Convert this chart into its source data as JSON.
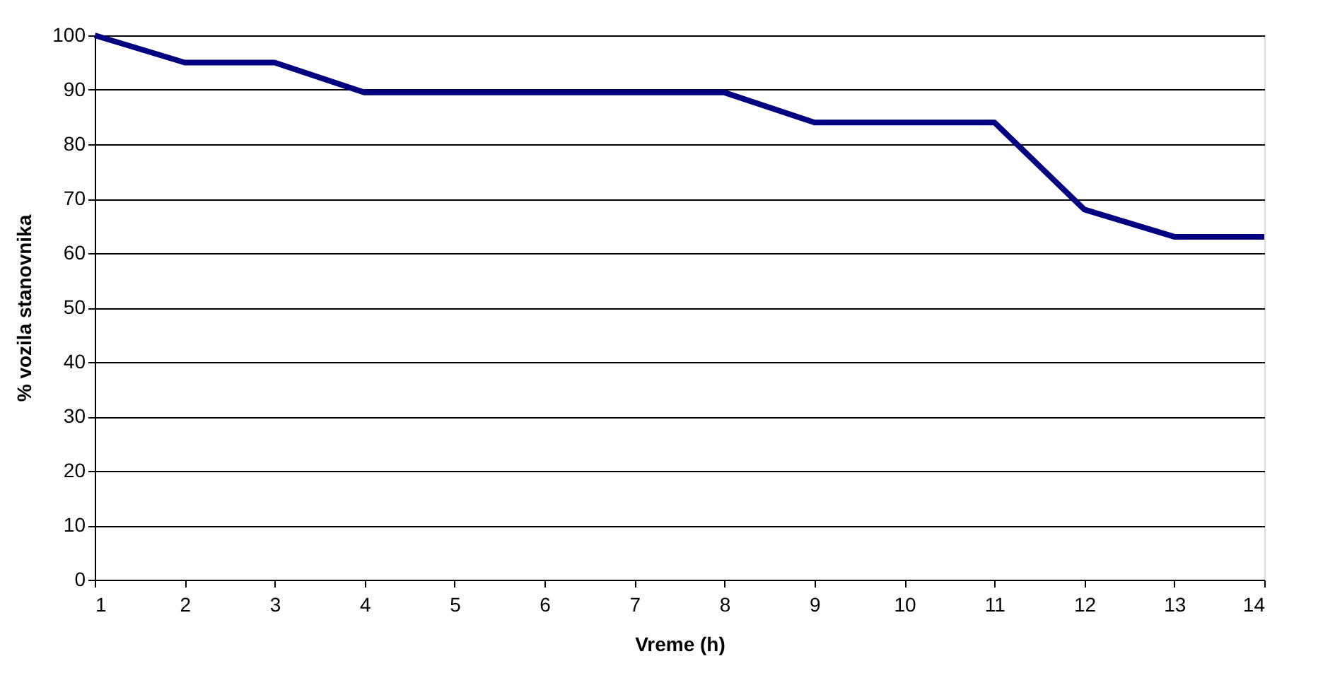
{
  "chart_data": {
    "type": "line",
    "xlabel": "Vreme (h)",
    "ylabel": "% vozila stanovnika",
    "x": [
      1,
      2,
      3,
      4,
      5,
      6,
      7,
      8,
      9,
      10,
      11,
      12,
      13,
      14
    ],
    "series": [
      {
        "color": "#000080",
        "values": [
          100,
          95,
          95,
          89.5,
          89.5,
          89.5,
          89.5,
          89.5,
          84,
          84,
          84,
          68,
          63,
          63
        ]
      }
    ],
    "xlim": [
      1,
      14
    ],
    "xticks": [
      1,
      2,
      3,
      4,
      5,
      6,
      7,
      8,
      9,
      10,
      11,
      12,
      13,
      14
    ],
    "ylim": [
      0,
      100
    ],
    "yticks": [
      0,
      10,
      20,
      30,
      40,
      50,
      60,
      70,
      80,
      90,
      100
    ],
    "grid": "y",
    "legend": false,
    "marker": "none",
    "line_style": "solid"
  }
}
